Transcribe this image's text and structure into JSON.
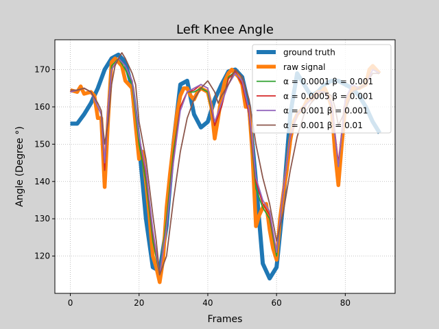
{
  "chart_data": {
    "type": "line",
    "title": "Left Knee Angle",
    "xlabel": "Frames",
    "ylabel": "Angle (Degree °)",
    "xlim": [
      -4.5,
      94.5
    ],
    "ylim": [
      110,
      178
    ],
    "xticks": [
      0,
      20,
      40,
      60,
      80
    ],
    "yticks": [
      120,
      130,
      140,
      150,
      160,
      170
    ],
    "grid": true,
    "legend_position": "top-right",
    "series": [
      {
        "name": "ground truth",
        "color": "#1f77b4",
        "points": [
          [
            0,
            155.5
          ],
          [
            2,
            155.5
          ],
          [
            4,
            158
          ],
          [
            6,
            161
          ],
          [
            8,
            165
          ],
          [
            10,
            170
          ],
          [
            12,
            173
          ],
          [
            14,
            174
          ],
          [
            16,
            172
          ],
          [
            18,
            165
          ],
          [
            20,
            150
          ],
          [
            22,
            130
          ],
          [
            24,
            117
          ],
          [
            26,
            116
          ],
          [
            28,
            128
          ],
          [
            30,
            150
          ],
          [
            32,
            166
          ],
          [
            34,
            167
          ],
          [
            36,
            158
          ],
          [
            38,
            154.5
          ],
          [
            40,
            156
          ],
          [
            42,
            162
          ],
          [
            44,
            166
          ],
          [
            46,
            169.5
          ],
          [
            48,
            170
          ],
          [
            50,
            168
          ],
          [
            52,
            160
          ],
          [
            54,
            140
          ],
          [
            56,
            118
          ],
          [
            58,
            114
          ],
          [
            60,
            117
          ],
          [
            62,
            135
          ],
          [
            64,
            158
          ],
          [
            66,
            169
          ],
          [
            68,
            166
          ],
          [
            70,
            163
          ],
          [
            72,
            164
          ],
          [
            74,
            166
          ],
          [
            76,
            167
          ],
          [
            78,
            167
          ],
          [
            80,
            166
          ],
          [
            82,
            165
          ],
          [
            84,
            163
          ],
          [
            86,
            160
          ],
          [
            88,
            156
          ],
          [
            90,
            153
          ]
        ]
      },
      {
        "name": "raw signal",
        "color": "#ff7f0e",
        "points": [
          [
            0,
            164.5
          ],
          [
            2,
            164
          ],
          [
            3,
            165.5
          ],
          [
            4,
            163.5
          ],
          [
            6,
            164
          ],
          [
            7,
            163
          ],
          [
            8,
            157
          ],
          [
            9,
            157
          ],
          [
            10,
            138.5
          ],
          [
            11,
            157
          ],
          [
            12,
            172
          ],
          [
            13,
            173
          ],
          [
            14,
            172
          ],
          [
            15,
            171
          ],
          [
            16,
            167
          ],
          [
            17,
            166
          ],
          [
            18,
            165
          ],
          [
            19,
            155
          ],
          [
            20,
            146
          ],
          [
            21,
            148
          ],
          [
            22,
            140
          ],
          [
            23,
            131
          ],
          [
            24,
            120
          ],
          [
            25,
            117
          ],
          [
            26,
            113
          ],
          [
            27,
            119
          ],
          [
            28,
            133
          ],
          [
            29,
            142
          ],
          [
            30,
            150
          ],
          [
            31,
            158
          ],
          [
            32,
            163
          ],
          [
            33,
            165
          ],
          [
            34,
            165
          ],
          [
            35,
            163
          ],
          [
            36,
            162
          ],
          [
            37,
            164
          ],
          [
            38,
            165
          ],
          [
            39,
            164.5
          ],
          [
            40,
            164
          ],
          [
            41,
            160
          ],
          [
            42,
            151.5
          ],
          [
            43,
            157
          ],
          [
            44,
            163
          ],
          [
            45,
            167
          ],
          [
            46,
            169
          ],
          [
            47,
            170
          ],
          [
            48,
            169
          ],
          [
            49,
            168
          ],
          [
            50,
            166
          ],
          [
            51,
            160
          ],
          [
            52,
            160
          ],
          [
            53,
            147
          ],
          [
            54,
            128
          ],
          [
            55,
            131
          ],
          [
            56,
            133
          ],
          [
            57,
            134
          ],
          [
            58,
            127
          ],
          [
            59,
            122
          ],
          [
            60,
            119
          ],
          [
            61,
            130
          ],
          [
            62,
            137
          ],
          [
            63,
            143
          ],
          [
            64,
            151
          ],
          [
            65,
            156
          ],
          [
            66,
            158
          ],
          [
            67,
            159
          ],
          [
            68,
            160
          ],
          [
            69,
            162
          ],
          [
            70,
            162
          ],
          [
            71,
            163
          ],
          [
            72,
            164
          ],
          [
            73,
            164
          ],
          [
            74,
            165
          ],
          [
            75,
            163
          ],
          [
            76,
            160
          ],
          [
            77,
            148
          ],
          [
            78,
            139
          ],
          [
            79,
            150
          ],
          [
            80,
            160
          ],
          [
            82,
            165
          ],
          [
            84,
            165
          ],
          [
            86,
            166
          ],
          [
            87,
            170
          ],
          [
            88,
            171
          ],
          [
            89,
            170
          ],
          [
            90,
            169
          ]
        ]
      },
      {
        "name": "α = 0.0001 β = 0.001",
        "color": "#2ca02c",
        "points": [
          [
            0,
            164
          ],
          [
            2,
            164.5
          ],
          [
            4,
            165
          ],
          [
            6,
            164
          ],
          [
            8,
            160
          ],
          [
            9,
            158
          ],
          [
            10,
            143
          ],
          [
            11,
            160
          ],
          [
            12,
            171
          ],
          [
            14,
            173
          ],
          [
            16,
            170
          ],
          [
            18,
            166
          ],
          [
            20,
            150
          ],
          [
            22,
            140
          ],
          [
            24,
            124
          ],
          [
            26,
            115
          ],
          [
            28,
            130
          ],
          [
            30,
            148
          ],
          [
            32,
            160
          ],
          [
            34,
            164
          ],
          [
            36,
            164
          ],
          [
            38,
            165
          ],
          [
            40,
            164
          ],
          [
            42,
            155
          ],
          [
            44,
            160
          ],
          [
            46,
            168
          ],
          [
            48,
            169.5
          ],
          [
            50,
            166
          ],
          [
            52,
            158
          ],
          [
            54,
            138
          ],
          [
            56,
            133
          ],
          [
            58,
            130
          ],
          [
            60,
            120
          ],
          [
            62,
            138
          ],
          [
            64,
            152
          ],
          [
            66,
            158
          ],
          [
            68,
            160
          ],
          [
            70,
            162
          ],
          [
            72,
            164
          ],
          [
            74,
            164
          ],
          [
            76,
            161
          ],
          [
            78,
            144
          ],
          [
            80,
            162
          ],
          [
            82,
            166
          ],
          [
            84,
            165
          ],
          [
            86,
            166
          ],
          [
            88,
            170
          ],
          [
            90,
            169
          ]
        ]
      },
      {
        "name": "α = 0.0005 β = 0.001",
        "color": "#d62728",
        "points": [
          [
            0,
            164
          ],
          [
            2,
            164.5
          ],
          [
            4,
            165
          ],
          [
            6,
            164
          ],
          [
            8,
            160
          ],
          [
            9,
            158
          ],
          [
            10,
            143
          ],
          [
            11,
            160
          ],
          [
            12,
            170
          ],
          [
            14,
            173
          ],
          [
            16,
            171
          ],
          [
            18,
            167
          ],
          [
            20,
            152
          ],
          [
            22,
            142
          ],
          [
            24,
            126
          ],
          [
            26,
            115
          ],
          [
            28,
            128
          ],
          [
            30,
            146
          ],
          [
            32,
            160
          ],
          [
            34,
            164
          ],
          [
            36,
            164.5
          ],
          [
            38,
            166
          ],
          [
            40,
            165
          ],
          [
            42,
            155
          ],
          [
            44,
            160
          ],
          [
            46,
            167.5
          ],
          [
            48,
            169.5
          ],
          [
            50,
            166
          ],
          [
            52,
            158
          ],
          [
            54,
            140
          ],
          [
            56,
            134
          ],
          [
            58,
            131
          ],
          [
            60,
            121
          ],
          [
            62,
            138
          ],
          [
            64,
            152
          ],
          [
            66,
            158
          ],
          [
            68,
            160
          ],
          [
            70,
            162
          ],
          [
            72,
            164
          ],
          [
            74,
            164
          ],
          [
            76,
            161
          ],
          [
            78,
            145
          ],
          [
            80,
            162
          ],
          [
            82,
            166
          ],
          [
            84,
            165
          ],
          [
            86,
            166
          ],
          [
            88,
            170
          ],
          [
            90,
            169
          ]
        ]
      },
      {
        "name": "α = 0.001 β = 0.001",
        "color": "#9467bd",
        "points": [
          [
            0,
            164
          ],
          [
            2,
            164.5
          ],
          [
            4,
            165
          ],
          [
            6,
            164
          ],
          [
            8,
            160
          ],
          [
            9,
            158
          ],
          [
            10,
            145
          ],
          [
            11,
            160
          ],
          [
            12,
            170
          ],
          [
            14,
            173
          ],
          [
            16,
            171
          ],
          [
            18,
            167
          ],
          [
            20,
            152
          ],
          [
            22,
            143
          ],
          [
            24,
            127
          ],
          [
            26,
            115
          ],
          [
            28,
            128
          ],
          [
            30,
            145
          ],
          [
            32,
            159
          ],
          [
            34,
            164
          ],
          [
            36,
            165
          ],
          [
            38,
            166
          ],
          [
            40,
            165
          ],
          [
            42,
            156
          ],
          [
            44,
            161
          ],
          [
            46,
            166
          ],
          [
            48,
            169
          ],
          [
            50,
            167
          ],
          [
            52,
            159
          ],
          [
            54,
            141
          ],
          [
            56,
            135
          ],
          [
            58,
            132
          ],
          [
            60,
            121
          ],
          [
            62,
            138
          ],
          [
            64,
            152
          ],
          [
            66,
            158
          ],
          [
            68,
            160
          ],
          [
            70,
            162
          ],
          [
            72,
            164
          ],
          [
            74,
            164
          ],
          [
            76,
            161
          ],
          [
            78,
            144
          ],
          [
            80,
            162
          ],
          [
            82,
            166
          ],
          [
            84,
            165
          ],
          [
            86,
            166
          ],
          [
            88,
            170
          ],
          [
            90,
            169
          ]
        ]
      },
      {
        "name": "α = 0.001 β = 0.01",
        "color": "#8c564b",
        "points": [
          [
            0,
            164.5
          ],
          [
            2,
            164.5
          ],
          [
            4,
            165
          ],
          [
            6,
            164
          ],
          [
            8,
            161
          ],
          [
            9,
            159
          ],
          [
            10,
            150
          ],
          [
            11,
            156
          ],
          [
            12,
            166
          ],
          [
            13,
            171
          ],
          [
            14,
            173
          ],
          [
            15,
            174.5
          ],
          [
            16,
            173
          ],
          [
            18,
            169
          ],
          [
            19,
            166
          ],
          [
            20,
            156
          ],
          [
            22,
            146
          ],
          [
            24,
            131
          ],
          [
            25,
            124
          ],
          [
            26,
            115
          ],
          [
            28,
            120
          ],
          [
            30,
            135
          ],
          [
            32,
            148
          ],
          [
            34,
            157
          ],
          [
            36,
            162
          ],
          [
            38,
            165
          ],
          [
            40,
            167
          ],
          [
            42,
            164
          ],
          [
            43,
            161
          ],
          [
            44,
            163
          ],
          [
            46,
            166
          ],
          [
            48,
            170
          ],
          [
            50,
            168
          ],
          [
            52,
            162
          ],
          [
            54,
            150
          ],
          [
            56,
            141
          ],
          [
            58,
            134
          ],
          [
            60,
            124
          ],
          [
            62,
            132
          ],
          [
            64,
            143
          ],
          [
            66,
            152
          ],
          [
            68,
            158
          ],
          [
            70,
            161
          ],
          [
            72,
            163
          ],
          [
            74,
            164
          ],
          [
            76,
            163
          ],
          [
            77,
            160
          ],
          [
            78,
            155
          ],
          [
            80,
            159
          ],
          [
            82,
            164
          ],
          [
            84,
            165
          ],
          [
            86,
            166
          ],
          [
            88,
            169
          ],
          [
            90,
            169
          ]
        ]
      }
    ]
  }
}
